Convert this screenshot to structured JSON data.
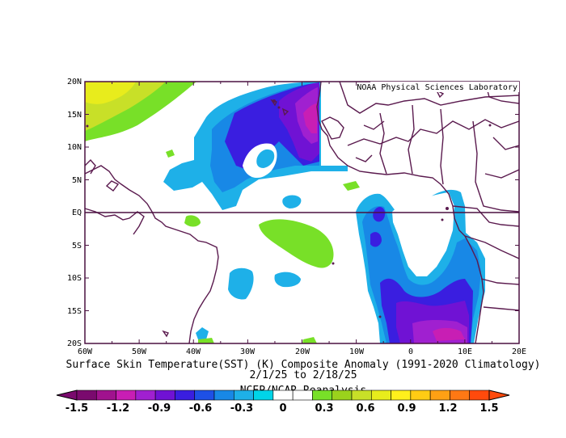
{
  "map": {
    "lat_labels": [
      "20N",
      "15N",
      "10N",
      "5N",
      "EQ",
      "5S",
      "10S",
      "15S",
      "20S"
    ],
    "lon_labels": [
      "60W",
      "50W",
      "40W",
      "30W",
      "20W",
      "10W",
      "0",
      "10E",
      "20E"
    ],
    "credit": "NOAA Physical Sciences Laboratory",
    "land_color": "#5a1a4e",
    "frame_color": "#4a1040"
  },
  "caption": {
    "line1": "Surface Skin Temperature(SST) (K) Composite Anomaly (1991-2020 Climatology)",
    "line2": "2/1/25  to 2/18/25",
    "source": "NCEP/NCAR Reanalysis"
  },
  "colorbar": {
    "labels": [
      "-1.5",
      "-1.2",
      "-0.9",
      "-0.6",
      "-0.3",
      "0",
      "0.3",
      "0.6",
      "0.9",
      "1.2",
      "1.5"
    ],
    "colors": [
      "#7a0a6e",
      "#a0128e",
      "#c81eb4",
      "#a020d0",
      "#7012d4",
      "#3a1ee0",
      "#1e50e6",
      "#1888e6",
      "#1eb0e8",
      "#00d4e8",
      "#ffffff",
      "#ffffff",
      "#78e028",
      "#9ad21c",
      "#c8e028",
      "#e8ec1c",
      "#fff01c",
      "#ffcc14",
      "#ffa014",
      "#ff7814",
      "#ff4a0c"
    ]
  }
}
